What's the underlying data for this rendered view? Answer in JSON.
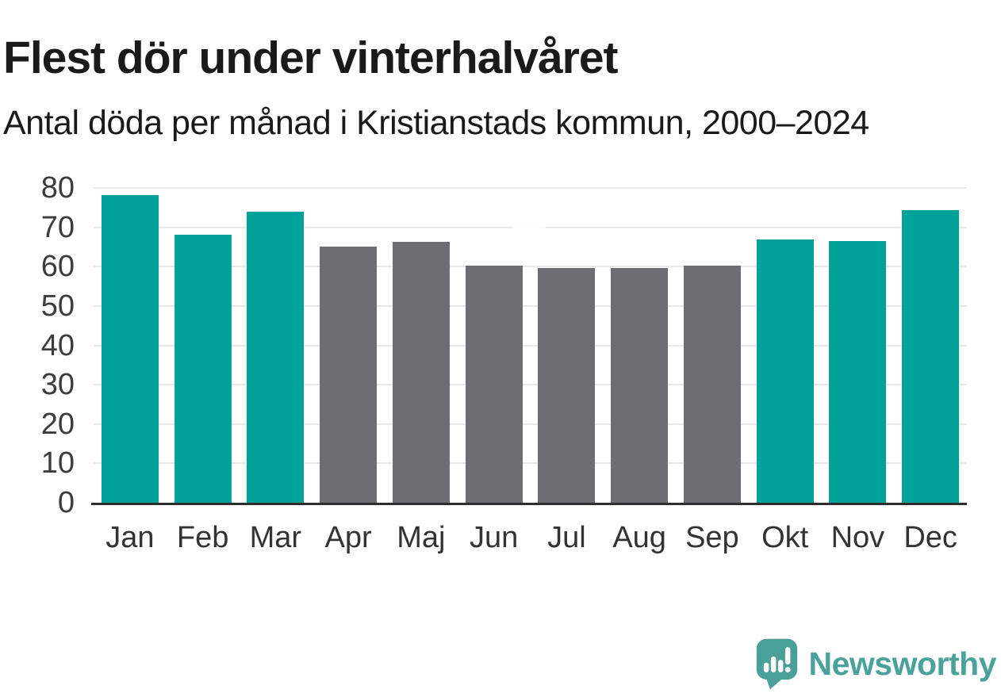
{
  "title": "Flest dör under vinterhalvåret",
  "subtitle": "Antal döda per månad i Kristianstads kommun, 2000–2024",
  "branding": {
    "name": "Newsworthy",
    "icon": "newsworthy-speech-bubble-barchart-icon",
    "color": "#4aa29b"
  },
  "colors": {
    "winter_bar": "#00a29a",
    "summer_bar": "#6d6d73",
    "gridline": "#e8e8e8",
    "axis": "#2d2d2d",
    "text": "#1a1a1a",
    "axis_label": "#3c3c3c"
  },
  "chart_data": {
    "type": "bar",
    "title": "Flest dör under vinterhalvåret",
    "subtitle": "Antal döda per månad i Kristianstads kommun, 2000–2024",
    "categories": [
      "Jan",
      "Feb",
      "Mar",
      "Apr",
      "Maj",
      "Jun",
      "Jul",
      "Aug",
      "Sep",
      "Okt",
      "Nov",
      "Dec"
    ],
    "values": [
      78.2,
      68.1,
      73.9,
      65.1,
      66.2,
      60.3,
      59.6,
      59.6,
      60.3,
      66.9,
      66.4,
      74.3
    ],
    "series_colors": [
      "winter",
      "winter",
      "winter",
      "summer",
      "summer",
      "summer",
      "summer",
      "summer",
      "summer",
      "winter",
      "winter",
      "winter"
    ],
    "xlabel": "",
    "ylabel": "",
    "ylim": [
      0,
      80
    ],
    "yticks": [
      0,
      10,
      20,
      30,
      40,
      50,
      60,
      70,
      80
    ],
    "grid": true,
    "legend_position": "none"
  }
}
